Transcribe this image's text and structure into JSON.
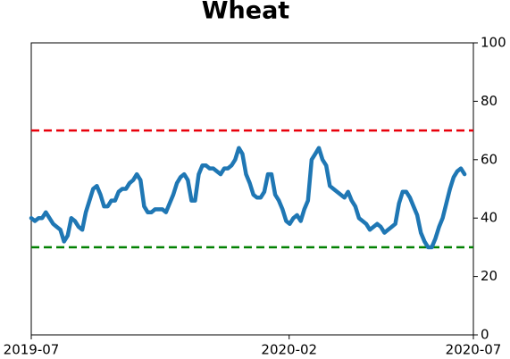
{
  "chart_data": {
    "type": "line",
    "title": "Wheat",
    "xlim": [
      "2019-07",
      "2020-07"
    ],
    "xticks": [
      "2019-07",
      "2020-02",
      "2020-07"
    ],
    "ylim": [
      0,
      100
    ],
    "yticks": [
      0,
      20,
      40,
      60,
      80,
      100
    ],
    "y_axis_side": "right",
    "reference_lines": [
      {
        "value": 70,
        "color": "#e8000b"
      },
      {
        "value": 30,
        "color": "#008000"
      }
    ],
    "series": [
      {
        "color": "#1f77b4",
        "values": [
          40,
          39,
          40,
          40,
          42,
          40,
          38,
          37,
          36,
          32,
          34,
          40,
          39,
          37,
          36,
          42,
          46,
          50,
          51,
          48,
          44,
          44,
          46,
          46,
          49,
          50,
          50,
          52,
          53,
          55,
          53,
          44,
          42,
          42,
          43,
          43,
          43,
          42,
          45,
          48,
          52,
          54,
          55,
          53,
          46,
          46,
          55,
          58,
          58,
          57,
          57,
          56,
          55,
          57,
          57,
          58,
          60,
          64,
          62,
          55,
          52,
          48,
          47,
          47,
          49,
          55,
          55,
          48,
          46,
          43,
          39,
          38,
          40,
          41,
          39,
          43,
          46,
          60,
          62,
          64,
          60,
          58,
          51,
          50,
          49,
          48,
          47,
          49,
          46,
          44,
          40,
          39,
          38,
          36,
          37,
          38,
          37,
          35,
          36,
          37,
          38,
          45,
          49,
          49,
          47,
          44,
          41,
          35,
          32,
          30,
          30,
          33,
          37,
          40,
          45,
          50,
          54,
          56,
          57,
          55
        ]
      }
    ]
  }
}
